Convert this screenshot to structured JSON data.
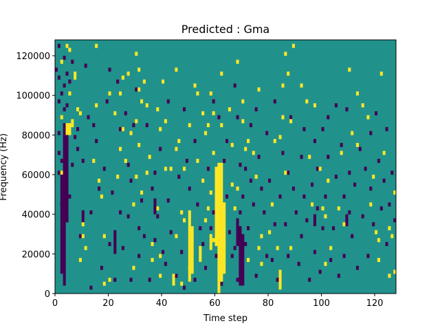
{
  "chart_data": {
    "type": "heatmap",
    "title": "Predicted : Gma",
    "xlabel": "Time step",
    "ylabel": "Frequency (Hz)",
    "xlim": [
      0,
      128
    ],
    "ylim": [
      0,
      128000
    ],
    "x_ticks": [
      0,
      20,
      40,
      60,
      80,
      100,
      120
    ],
    "y_ticks": [
      0,
      20000,
      40000,
      60000,
      80000,
      100000,
      120000
    ],
    "n_time_steps": 128,
    "n_freq_bins": 64,
    "colors": {
      "background": "#21918c",
      "high": "#fde725",
      "low": "#440154"
    },
    "cell_values": {
      "background": 0,
      "high": 1,
      "low": -1
    },
    "high_cells": [
      [
        2,
        58
      ],
      [
        2,
        44
      ],
      [
        2,
        30
      ],
      [
        2,
        17
      ],
      [
        4,
        62
      ],
      [
        5,
        61
      ],
      [
        5,
        50
      ],
      [
        5,
        40
      ],
      [
        6,
        43
      ],
      [
        6,
        42
      ],
      [
        7,
        55
      ],
      [
        7,
        54
      ],
      [
        8,
        46
      ],
      [
        9,
        45
      ],
      [
        9,
        8
      ],
      [
        10,
        17
      ],
      [
        10,
        14
      ],
      [
        11,
        11
      ],
      [
        14,
        33
      ],
      [
        15,
        62
      ],
      [
        15,
        47
      ],
      [
        16,
        28
      ],
      [
        17,
        24
      ],
      [
        18,
        14
      ],
      [
        18,
        2
      ],
      [
        20,
        50
      ],
      [
        20,
        3
      ],
      [
        22,
        45
      ],
      [
        23,
        29
      ],
      [
        24,
        50
      ],
      [
        24,
        36
      ],
      [
        25,
        54
      ],
      [
        25,
        41
      ],
      [
        26,
        33
      ],
      [
        27,
        55
      ],
      [
        28,
        40
      ],
      [
        29,
        6
      ],
      [
        29,
        22
      ],
      [
        30,
        60
      ],
      [
        30,
        43
      ],
      [
        30,
        29
      ],
      [
        31,
        56
      ],
      [
        31,
        51
      ],
      [
        31,
        37
      ],
      [
        32,
        48
      ],
      [
        32,
        25
      ],
      [
        33,
        53
      ],
      [
        34,
        47
      ],
      [
        34,
        30
      ],
      [
        35,
        34
      ],
      [
        36,
        12
      ],
      [
        36,
        8
      ],
      [
        38,
        46
      ],
      [
        38,
        21
      ],
      [
        39,
        41
      ],
      [
        39,
        9
      ],
      [
        39,
        4
      ],
      [
        40,
        53
      ],
      [
        41,
        43
      ],
      [
        41,
        31
      ],
      [
        43,
        31
      ],
      [
        45,
        56
      ],
      [
        45,
        36
      ],
      [
        45,
        14
      ],
      [
        46,
        38
      ],
      [
        47,
        2
      ],
      [
        47,
        20
      ],
      [
        48,
        31
      ],
      [
        48,
        18
      ],
      [
        50,
        42
      ],
      [
        50,
        6
      ],
      [
        52,
        52
      ],
      [
        53,
        50
      ],
      [
        53,
        33
      ],
      [
        55,
        45
      ],
      [
        55,
        28
      ],
      [
        56,
        40
      ],
      [
        56,
        18
      ],
      [
        57,
        42
      ],
      [
        57,
        21
      ],
      [
        58,
        50
      ],
      [
        58,
        25
      ],
      [
        59,
        45
      ],
      [
        59,
        35
      ],
      [
        59,
        13
      ],
      [
        61,
        29
      ],
      [
        62,
        55
      ],
      [
        62,
        42
      ],
      [
        63,
        12
      ],
      [
        63,
        19
      ],
      [
        65,
        46
      ],
      [
        66,
        37
      ],
      [
        66,
        27
      ],
      [
        67,
        21
      ],
      [
        68,
        58
      ],
      [
        68,
        26
      ],
      [
        70,
        48
      ],
      [
        70,
        43
      ],
      [
        71,
        36
      ],
      [
        72,
        38
      ],
      [
        72,
        8
      ],
      [
        74,
        35
      ],
      [
        75,
        29
      ],
      [
        76,
        51
      ],
      [
        76,
        11
      ],
      [
        77,
        14
      ],
      [
        77,
        7
      ],
      [
        80,
        15
      ],
      [
        81,
        22
      ],
      [
        82,
        38
      ],
      [
        83,
        11
      ],
      [
        84,
        39
      ],
      [
        85,
        44
      ],
      [
        85,
        52
      ],
      [
        86,
        60
      ],
      [
        86,
        30
      ],
      [
        87,
        55
      ],
      [
        88,
        11
      ],
      [
        88,
        43
      ],
      [
        89,
        62
      ],
      [
        92,
        52
      ],
      [
        94,
        48
      ],
      [
        95,
        34
      ],
      [
        96,
        22
      ],
      [
        97,
        47
      ],
      [
        99,
        31
      ],
      [
        100,
        21
      ],
      [
        101,
        19
      ],
      [
        101,
        7
      ],
      [
        102,
        28
      ],
      [
        103,
        11
      ],
      [
        106,
        21
      ],
      [
        107,
        35
      ],
      [
        108,
        17
      ],
      [
        110,
        56
      ],
      [
        111,
        40
      ],
      [
        113,
        50
      ],
      [
        113,
        37
      ],
      [
        115,
        47
      ],
      [
        117,
        44
      ],
      [
        118,
        22
      ],
      [
        119,
        29
      ],
      [
        120,
        15
      ],
      [
        121,
        13
      ],
      [
        121,
        8
      ],
      [
        122,
        55
      ],
      [
        123,
        35
      ],
      [
        125,
        16
      ],
      [
        125,
        4
      ],
      [
        126,
        14
      ],
      [
        127,
        25
      ],
      [
        127,
        5
      ],
      [
        128,
        38
      ]
    ],
    "low_cells": [
      [
        0,
        56
      ],
      [
        1,
        62
      ],
      [
        1,
        54
      ],
      [
        1,
        48
      ],
      [
        1,
        40
      ],
      [
        1,
        35
      ],
      [
        1,
        30
      ],
      [
        2,
        50
      ],
      [
        2,
        33
      ],
      [
        2,
        22
      ],
      [
        3,
        59
      ],
      [
        3,
        52
      ],
      [
        3,
        46
      ],
      [
        3,
        38
      ],
      [
        3,
        26
      ],
      [
        4,
        55
      ],
      [
        4,
        47
      ],
      [
        4,
        36
      ],
      [
        4,
        18
      ],
      [
        5,
        53
      ],
      [
        5,
        24
      ],
      [
        6,
        58
      ],
      [
        6,
        32
      ],
      [
        7,
        39
      ],
      [
        8,
        41
      ],
      [
        8,
        36
      ],
      [
        9,
        14
      ],
      [
        10,
        33
      ],
      [
        11,
        57
      ],
      [
        12,
        44
      ],
      [
        13,
        20
      ],
      [
        13,
        1
      ],
      [
        14,
        42
      ],
      [
        15,
        38
      ],
      [
        16,
        26
      ],
      [
        17,
        6
      ],
      [
        18,
        31
      ],
      [
        19,
        48
      ],
      [
        20,
        12
      ],
      [
        20,
        56
      ],
      [
        21,
        25
      ],
      [
        22,
        15
      ],
      [
        22,
        3
      ],
      [
        23,
        53
      ],
      [
        24,
        41
      ],
      [
        24,
        20
      ],
      [
        25,
        11
      ],
      [
        26,
        45
      ],
      [
        27,
        32
      ],
      [
        27,
        19
      ],
      [
        28,
        28
      ],
      [
        28,
        3
      ],
      [
        29,
        42
      ],
      [
        30,
        51
      ],
      [
        31,
        16
      ],
      [
        31,
        9
      ],
      [
        32,
        23
      ],
      [
        33,
        14
      ],
      [
        34,
        42
      ],
      [
        35,
        3
      ],
      [
        36,
        26
      ],
      [
        37,
        30
      ],
      [
        37,
        13
      ],
      [
        38,
        19
      ],
      [
        39,
        36
      ],
      [
        40,
        10
      ],
      [
        41,
        7
      ],
      [
        42,
        48
      ],
      [
        42,
        23
      ],
      [
        43,
        15
      ],
      [
        45,
        4
      ],
      [
        46,
        29
      ],
      [
        47,
        10
      ],
      [
        48,
        46
      ],
      [
        48,
        1
      ],
      [
        49,
        33
      ],
      [
        50,
        26
      ],
      [
        51,
        9
      ],
      [
        52,
        38
      ],
      [
        52,
        3
      ],
      [
        53,
        22
      ],
      [
        54,
        16
      ],
      [
        55,
        12
      ],
      [
        56,
        6
      ],
      [
        57,
        31
      ],
      [
        58,
        16
      ],
      [
        59,
        48
      ],
      [
        59,
        20
      ],
      [
        60,
        9
      ],
      [
        61,
        44
      ],
      [
        62,
        2
      ],
      [
        63,
        33
      ],
      [
        64,
        38
      ],
      [
        64,
        24
      ],
      [
        65,
        15
      ],
      [
        66,
        9
      ],
      [
        67,
        52
      ],
      [
        67,
        11
      ],
      [
        68,
        44
      ],
      [
        68,
        3
      ],
      [
        69,
        32
      ],
      [
        69,
        20
      ],
      [
        70,
        24
      ],
      [
        71,
        12
      ],
      [
        71,
        31
      ],
      [
        72,
        16
      ],
      [
        73,
        42
      ],
      [
        73,
        28
      ],
      [
        74,
        22
      ],
      [
        75,
        4
      ],
      [
        75,
        46
      ],
      [
        76,
        34
      ],
      [
        77,
        26
      ],
      [
        78,
        20
      ],
      [
        79,
        9
      ],
      [
        79,
        40
      ],
      [
        80,
        28
      ],
      [
        81,
        8
      ],
      [
        82,
        17
      ],
      [
        82,
        48
      ],
      [
        83,
        3
      ],
      [
        84,
        24
      ],
      [
        85,
        35
      ],
      [
        86,
        17
      ],
      [
        87,
        30
      ],
      [
        87,
        9
      ],
      [
        88,
        44
      ],
      [
        89,
        26
      ],
      [
        90,
        20
      ],
      [
        91,
        7
      ],
      [
        92,
        34
      ],
      [
        92,
        14
      ],
      [
        93,
        24
      ],
      [
        93,
        41
      ],
      [
        94,
        18
      ],
      [
        95,
        3
      ],
      [
        96,
        27
      ],
      [
        97,
        10
      ],
      [
        97,
        38
      ],
      [
        98,
        21
      ],
      [
        98,
        31
      ],
      [
        99,
        5
      ],
      [
        100,
        41
      ],
      [
        100,
        16
      ],
      [
        101,
        24
      ],
      [
        102,
        34
      ],
      [
        102,
        44
      ],
      [
        103,
        8
      ],
      [
        104,
        16
      ],
      [
        105,
        29
      ],
      [
        105,
        47
      ],
      [
        106,
        4
      ],
      [
        107,
        37
      ],
      [
        108,
        24
      ],
      [
        108,
        9
      ],
      [
        109,
        46
      ],
      [
        110,
        30
      ],
      [
        110,
        20
      ],
      [
        111,
        14
      ],
      [
        112,
        27
      ],
      [
        113,
        6
      ],
      [
        114,
        36
      ],
      [
        115,
        19
      ],
      [
        116,
        31
      ],
      [
        117,
        9
      ],
      [
        118,
        40
      ],
      [
        118,
        26
      ],
      [
        119,
        17
      ],
      [
        120,
        45
      ],
      [
        121,
        33
      ],
      [
        122,
        21
      ],
      [
        123,
        28
      ],
      [
        124,
        12
      ],
      [
        124,
        41
      ],
      [
        125,
        22
      ],
      [
        126,
        30
      ],
      [
        127,
        18
      ]
    ],
    "high_bands": [
      {
        "x": 61,
        "y_from": 0,
        "y_to": 66000
      },
      {
        "x": 62,
        "y_from": 6000,
        "y_to": 66000
      },
      {
        "x": 60,
        "y_from": 24000,
        "y_to": 64000
      },
      {
        "x": 63,
        "y_from": 10000,
        "y_to": 46000
      },
      {
        "x": 50,
        "y_from": 6000,
        "y_to": 42000
      },
      {
        "x": 51,
        "y_from": 10000,
        "y_to": 34000
      },
      {
        "x": 54,
        "y_from": 16000,
        "y_to": 24000
      },
      {
        "x": 58,
        "y_from": 22000,
        "y_to": 30000
      },
      {
        "x": 4,
        "y_from": 80000,
        "y_to": 86000
      },
      {
        "x": 5,
        "y_from": 80000,
        "y_to": 86000
      },
      {
        "x": 44,
        "y_from": 4000,
        "y_to": 10000
      },
      {
        "x": 84,
        "y_from": 2000,
        "y_to": 12000
      }
    ],
    "low_bands": [
      {
        "x": 3,
        "y_from": 4000,
        "y_to": 86000
      },
      {
        "x": 4,
        "y_from": 36000,
        "y_to": 82000
      },
      {
        "x": 2,
        "y_from": 10000,
        "y_to": 60000
      },
      {
        "x": 69,
        "y_from": 4000,
        "y_to": 34000
      },
      {
        "x": 70,
        "y_from": 4000,
        "y_to": 30000
      },
      {
        "x": 68,
        "y_from": 24000,
        "y_to": 38000
      },
      {
        "x": 10,
        "y_from": 36000,
        "y_to": 42000
      },
      {
        "x": 22,
        "y_from": 20000,
        "y_to": 30000
      },
      {
        "x": 37,
        "y_from": 40000,
        "y_to": 48000
      },
      {
        "x": 109,
        "y_from": 34000,
        "y_to": 40000
      },
      {
        "x": 97,
        "y_from": 34000,
        "y_to": 40000
      }
    ]
  }
}
